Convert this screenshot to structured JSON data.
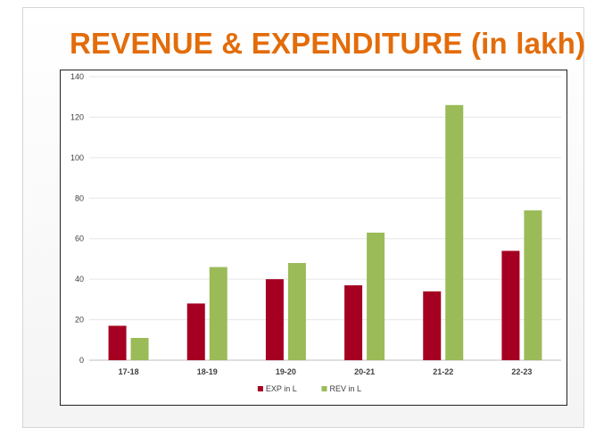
{
  "title": "REVENUE & EXPENDITURE (in lakh)",
  "colors": {
    "title": "#e36c0a",
    "exp": "#a50021",
    "rev": "#9bbb59",
    "grid": "#e6e6e6"
  },
  "chart_data": {
    "type": "bar",
    "categories": [
      "17-18",
      "18-19",
      "19-20",
      "20-21",
      "21-22",
      "22-23"
    ],
    "series": [
      {
        "name": "EXP in L",
        "color": "#a50021",
        "values": [
          17,
          28,
          40,
          37,
          34,
          54
        ]
      },
      {
        "name": "REV in L",
        "color": "#9bbb59",
        "values": [
          11,
          46,
          48,
          63,
          126,
          74
        ]
      }
    ],
    "yticks": [
      "0",
      "20",
      "40",
      "60",
      "80",
      "100",
      "120",
      "140"
    ],
    "ylim": [
      0,
      140
    ],
    "grid": true,
    "legend_position": "bottom"
  }
}
